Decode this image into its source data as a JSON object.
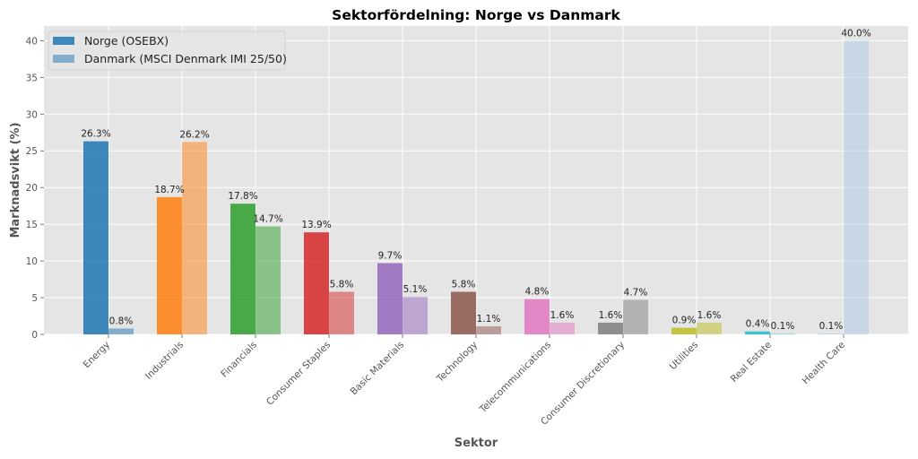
{
  "chart_data": {
    "type": "bar",
    "title": "Sektorfördelning: Norge vs Danmark",
    "xlabel": "Sektor",
    "ylabel": "Marknadsvikt (%)",
    "ylim": [
      0,
      42
    ],
    "yticks": [
      0,
      5,
      10,
      15,
      20,
      25,
      30,
      35,
      40
    ],
    "ytick_labels": [
      "0",
      "5",
      "10",
      "15",
      "20",
      "25",
      "30",
      "35",
      "40"
    ],
    "grid": true,
    "legend_position": "top-left",
    "categories": [
      "Energy",
      "Industrials",
      "Financials",
      "Consumer Staples",
      "Basic Materials",
      "Technology",
      "Telecommunications",
      "Consumer Discretionary",
      "Utilities",
      "Real Estate",
      "Health Care"
    ],
    "colors": [
      "#1f77b4",
      "#ff7f0e",
      "#2ca02c",
      "#d62728",
      "#9467bd",
      "#8c564b",
      "#e377c2",
      "#7f7f7f",
      "#bcbd22",
      "#17becf",
      "#aec7e8"
    ],
    "series": [
      {
        "name": "Norge (OSEBX)",
        "values": [
          26.3,
          18.7,
          17.8,
          13.9,
          9.7,
          5.8,
          4.8,
          1.6,
          0.9,
          0.4,
          0.1
        ],
        "labels": [
          "26.3%",
          "18.7%",
          "17.8%",
          "13.9%",
          "9.7%",
          "5.8%",
          "4.8%",
          "1.6%",
          "0.9%",
          "0.4%",
          "0.1%"
        ]
      },
      {
        "name": "Danmark (MSCI Denmark IMI 25/50)",
        "values": [
          0.8,
          26.2,
          14.7,
          5.8,
          5.1,
          1.1,
          1.6,
          4.7,
          1.6,
          0.1,
          40.0
        ],
        "labels": [
          "0.8%",
          "26.2%",
          "14.7%",
          "5.8%",
          "5.1%",
          "1.1%",
          "1.6%",
          "4.7%",
          "1.6%",
          "0.1%",
          "40.0%"
        ]
      }
    ],
    "background_color": "#e5e5e5",
    "grid_color": "#ffffff"
  }
}
